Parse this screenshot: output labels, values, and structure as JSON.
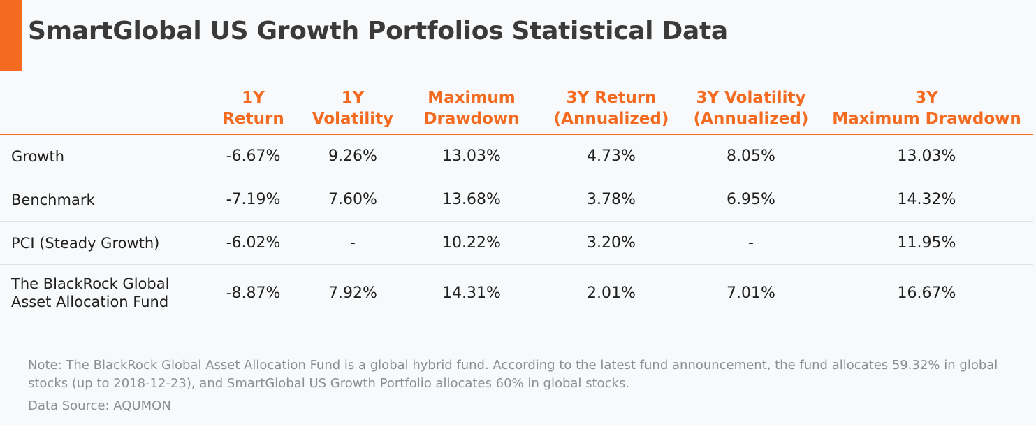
{
  "title": "SmartGlobal US Growth Portfolios Statistical Data",
  "accent_color": "#f26b21",
  "chart_data": {
    "type": "table",
    "columns": [
      {
        "line1": "1Y",
        "line2": "Return"
      },
      {
        "line1": "1Y",
        "line2": "Volatility"
      },
      {
        "line1": "Maximum",
        "line2": "Drawdown"
      },
      {
        "line1": "3Y Return",
        "line2": "(Annualized)"
      },
      {
        "line1": "3Y Volatility",
        "line2": "(Annualized)"
      },
      {
        "line1": "3Y",
        "line2": "Maximum Drawdown"
      }
    ],
    "rows": [
      {
        "label": [
          "Growth"
        ],
        "values": [
          "-6.67%",
          "9.26%",
          "13.03%",
          "4.73%",
          "8.05%",
          "13.03%"
        ]
      },
      {
        "label": [
          "Benchmark"
        ],
        "values": [
          "-7.19%",
          "7.60%",
          "13.68%",
          "3.78%",
          "6.95%",
          "14.32%"
        ]
      },
      {
        "label": [
          "PCI (Steady Growth)"
        ],
        "values": [
          "-6.02%",
          "-",
          "10.22%",
          "3.20%",
          "-",
          "11.95%"
        ]
      },
      {
        "label": [
          "The BlackRock Global",
          "Asset Allocation Fund"
        ],
        "values": [
          "-8.87%",
          "7.92%",
          "14.31%",
          "2.01%",
          "7.01%",
          "16.67%"
        ]
      }
    ]
  },
  "note": "Note: The BlackRock Global Asset Allocation Fund is a global hybrid fund. According to the latest fund announcement, the fund allocates 59.32% in global stocks (up to 2018-12-23), and SmartGlobal US Growth Portfolio allocates 60% in global stocks.",
  "source": "Data Source: AQUMON"
}
